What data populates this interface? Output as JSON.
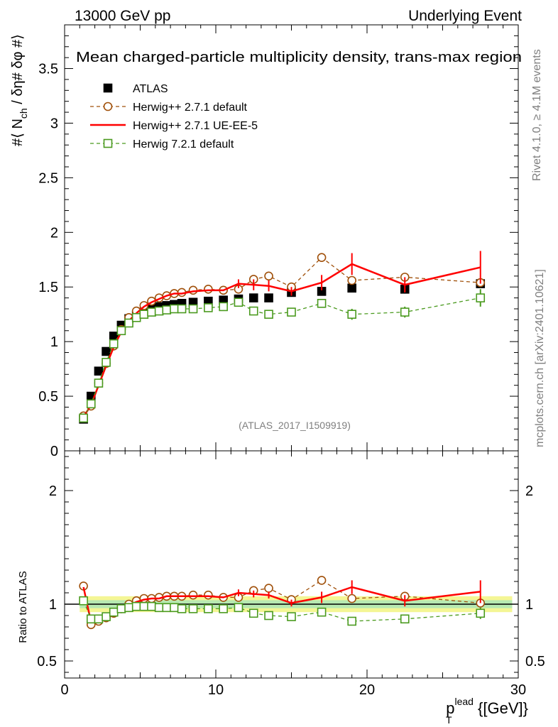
{
  "header": {
    "left": "13000 GeV pp",
    "right": "Underlying Event"
  },
  "side_labels": {
    "rivet": "Rivet 4.1.0, ≥ 4.1M events",
    "mcplots": "mcplots.cern.ch [arXiv:2401.10621]"
  },
  "chart_data": {
    "type": "scatter",
    "title": "Mean charged-particle multiplicity density, trans-max region",
    "analysis_tag": "(ATLAS_2017_I1509919)",
    "ylabel": "#⟨ N_ch / δη# δφ #⟩",
    "ylabel_parts": {
      "main": "#⟨ N",
      "sub": "ch",
      "rest": " / δη# δφ #⟩"
    },
    "xlabel": "p_T^lead {[GeV]}",
    "xlabel_parts": {
      "p": "p",
      "sub": "T",
      "sup": "lead",
      "rest": " {[GeV]}"
    },
    "xlim": [
      0,
      30
    ],
    "ylim": [
      0,
      3.9
    ],
    "x_ticks": [
      "0",
      "10",
      "20",
      "30"
    ],
    "y_ticks": [
      "0",
      "0.5",
      "1",
      "1.5",
      "2",
      "2.5",
      "3",
      "3.5"
    ],
    "ratio": {
      "ylabel": "Ratio to ATLAS",
      "ylim": [
        0.35,
        2.35
      ],
      "y_ticks": [
        "0.5",
        "1",
        "2"
      ]
    },
    "series": [
      {
        "name": "ATLAS",
        "style": "data",
        "color": "#000000",
        "points": [
          [
            1.25,
            0.29
          ],
          [
            1.75,
            0.5
          ],
          [
            2.25,
            0.73
          ],
          [
            2.75,
            0.91
          ],
          [
            3.25,
            1.05
          ],
          [
            3.75,
            1.15
          ],
          [
            4.25,
            1.21
          ],
          [
            4.75,
            1.24
          ],
          [
            5.25,
            1.27
          ],
          [
            5.75,
            1.3
          ],
          [
            6.25,
            1.32
          ],
          [
            6.75,
            1.33
          ],
          [
            7.25,
            1.34
          ],
          [
            7.75,
            1.35
          ],
          [
            8.5,
            1.36
          ],
          [
            9.5,
            1.37
          ],
          [
            10.5,
            1.38
          ],
          [
            11.5,
            1.39
          ],
          [
            12.5,
            1.4
          ],
          [
            13.5,
            1.4
          ],
          [
            15,
            1.45
          ],
          [
            17,
            1.46
          ],
          [
            19,
            1.49
          ],
          [
            22.5,
            1.48
          ],
          [
            27.5,
            1.53
          ]
        ]
      },
      {
        "name": "Herwig++ 2.7.1 default",
        "style": "circle-dashed",
        "color": "#a0500a",
        "points": [
          [
            1.25,
            0.32
          ],
          [
            1.75,
            0.41
          ],
          [
            2.25,
            0.62
          ],
          [
            2.75,
            0.8
          ],
          [
            3.25,
            0.96
          ],
          [
            3.75,
            1.11
          ],
          [
            4.25,
            1.22
          ],
          [
            4.75,
            1.28
          ],
          [
            5.25,
            1.33
          ],
          [
            5.75,
            1.37
          ],
          [
            6.25,
            1.4
          ],
          [
            6.75,
            1.42
          ],
          [
            7.25,
            1.44
          ],
          [
            7.75,
            1.45
          ],
          [
            8.5,
            1.47
          ],
          [
            9.5,
            1.48
          ],
          [
            10.5,
            1.47
          ],
          [
            11.5,
            1.48
          ],
          [
            12.5,
            1.57
          ],
          [
            13.5,
            1.6
          ],
          [
            15,
            1.5
          ],
          [
            17,
            1.77
          ],
          [
            19,
            1.56
          ],
          [
            22.5,
            1.59
          ],
          [
            27.5,
            1.54
          ]
        ],
        "ratio": [
          1.16,
          0.82,
          0.85,
          0.88,
          0.92,
          0.96,
          1.0,
          1.03,
          1.05,
          1.05,
          1.06,
          1.07,
          1.07,
          1.07,
          1.08,
          1.08,
          1.06,
          1.06,
          1.12,
          1.14,
          1.04,
          1.21,
          1.05,
          1.07,
          1.01
        ]
      },
      {
        "name": "Herwig++ 2.7.1 UE-EE-5",
        "style": "solid",
        "color": "#ff0000",
        "points": [
          [
            1.25,
            0.31
          ],
          [
            1.75,
            0.42
          ],
          [
            2.25,
            0.6
          ],
          [
            2.75,
            0.78
          ],
          [
            3.25,
            0.95
          ],
          [
            3.75,
            1.09
          ],
          [
            4.25,
            1.19
          ],
          [
            4.75,
            1.26
          ],
          [
            5.25,
            1.32
          ],
          [
            5.75,
            1.36
          ],
          [
            6.25,
            1.39
          ],
          [
            6.75,
            1.42
          ],
          [
            7.25,
            1.44
          ],
          [
            7.75,
            1.44
          ],
          [
            8.5,
            1.46
          ],
          [
            9.5,
            1.47
          ],
          [
            10.5,
            1.47
          ],
          [
            11.5,
            1.53
          ],
          [
            12.5,
            1.52
          ],
          [
            13.5,
            1.51
          ],
          [
            15,
            1.46
          ],
          [
            17,
            1.54
          ],
          [
            19,
            1.71
          ],
          [
            22.5,
            1.52
          ],
          [
            27.5,
            1.68
          ]
        ],
        "errors": [
          0,
          0,
          0,
          0,
          0,
          0,
          0,
          0,
          0,
          0,
          0,
          0,
          0,
          0,
          0,
          0,
          0,
          0.04,
          0.05,
          0.05,
          0.04,
          0.07,
          0.1,
          0.07,
          0.15
        ],
        "ratio": [
          1.15,
          0.84,
          0.84,
          0.87,
          0.91,
          0.95,
          0.99,
          1.02,
          1.04,
          1.05,
          1.05,
          1.07,
          1.07,
          1.07,
          1.07,
          1.07,
          1.06,
          1.1,
          1.09,
          1.08,
          1.01,
          1.06,
          1.15,
          1.03,
          1.11
        ],
        "ratio_errors": [
          0,
          0,
          0,
          0,
          0,
          0,
          0,
          0,
          0,
          0,
          0,
          0,
          0,
          0,
          0,
          0,
          0,
          0.03,
          0.03,
          0.03,
          0.03,
          0.05,
          0.06,
          0.05,
          0.1
        ]
      },
      {
        "name": "Herwig 7.2.1 default",
        "style": "square-dashed",
        "color": "#4a9a1e",
        "points": [
          [
            1.25,
            0.3
          ],
          [
            1.75,
            0.43
          ],
          [
            2.25,
            0.62
          ],
          [
            2.75,
            0.81
          ],
          [
            3.25,
            0.98
          ],
          [
            3.75,
            1.1
          ],
          [
            4.25,
            1.17
          ],
          [
            4.75,
            1.22
          ],
          [
            5.25,
            1.25
          ],
          [
            5.75,
            1.27
          ],
          [
            6.25,
            1.28
          ],
          [
            6.75,
            1.29
          ],
          [
            7.25,
            1.3
          ],
          [
            7.75,
            1.3
          ],
          [
            8.5,
            1.3
          ],
          [
            9.5,
            1.31
          ],
          [
            10.5,
            1.32
          ],
          [
            11.5,
            1.36
          ],
          [
            12.5,
            1.28
          ],
          [
            13.5,
            1.25
          ],
          [
            15,
            1.27
          ],
          [
            17,
            1.35
          ],
          [
            19,
            1.25
          ],
          [
            22.5,
            1.27
          ],
          [
            27.5,
            1.4
          ]
        ],
        "errors": [
          0,
          0,
          0,
          0,
          0,
          0,
          0,
          0,
          0,
          0,
          0,
          0,
          0,
          0,
          0,
          0,
          0,
          0,
          0.03,
          0.03,
          0.03,
          0.04,
          0.05,
          0.05,
          0.08
        ],
        "ratio": [
          1.03,
          0.87,
          0.87,
          0.89,
          0.93,
          0.96,
          0.97,
          0.98,
          0.98,
          0.98,
          0.97,
          0.97,
          0.97,
          0.96,
          0.96,
          0.96,
          0.96,
          0.97,
          0.92,
          0.9,
          0.89,
          0.93,
          0.85,
          0.87,
          0.92
        ],
        "ratio_errors": [
          0,
          0,
          0,
          0,
          0,
          0,
          0,
          0,
          0,
          0,
          0,
          0,
          0,
          0,
          0,
          0,
          0,
          0,
          0.02,
          0.02,
          0.02,
          0.03,
          0.03,
          0.03,
          0.05
        ]
      }
    ]
  }
}
